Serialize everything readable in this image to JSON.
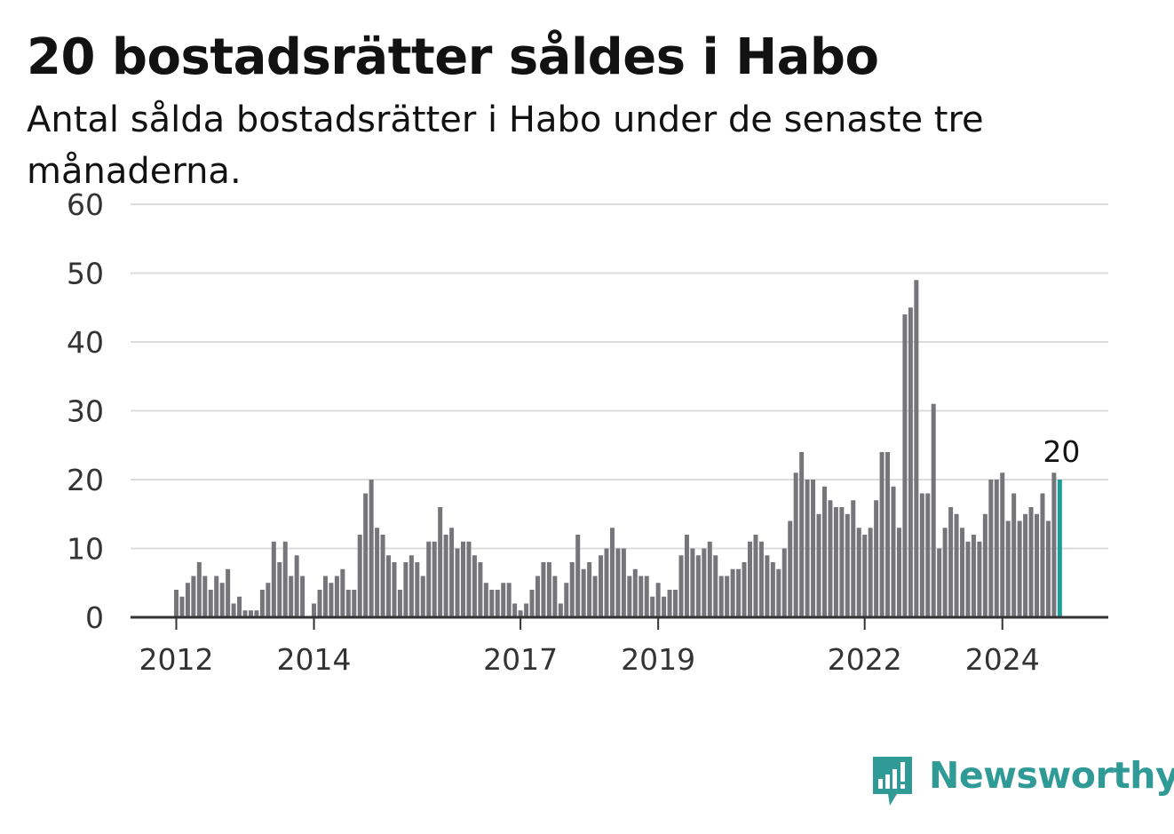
{
  "header": {
    "title": "20 bostadsrätter såldes i Habo",
    "subtitle": "Antal sålda bostadsrätter i Habo under de senaste tre månaderna."
  },
  "chart_data": {
    "type": "bar",
    "title": "20 bostadsrätter såldes i Habo",
    "subtitle": "Antal sålda bostadsrätter i Habo under de senaste tre månaderna.",
    "xlabel": "",
    "ylabel": "",
    "ylim": [
      0,
      60
    ],
    "yticks": [
      0,
      10,
      20,
      30,
      40,
      50,
      60
    ],
    "xticks": [
      {
        "label": "2012",
        "index": 0
      },
      {
        "label": "2014",
        "index": 24
      },
      {
        "label": "2017",
        "index": 60
      },
      {
        "label": "2019",
        "index": 84
      },
      {
        "label": "2022",
        "index": 120
      },
      {
        "label": "2024",
        "index": 144
      }
    ],
    "grid": true,
    "bar_color": "#76757a",
    "highlight_color": "#1b9e98",
    "highlight_index": 154,
    "highlight_label": "20",
    "values": [
      4,
      3,
      5,
      6,
      8,
      6,
      4,
      6,
      5,
      7,
      2,
      3,
      1,
      1,
      1,
      4,
      5,
      11,
      8,
      11,
      6,
      9,
      6,
      0,
      2,
      4,
      6,
      5,
      6,
      7,
      4,
      4,
      12,
      18,
      20,
      13,
      12,
      9,
      8,
      4,
      8,
      9,
      8,
      6,
      11,
      11,
      16,
      12,
      13,
      10,
      11,
      11,
      9,
      8,
      5,
      4,
      4,
      5,
      5,
      2,
      1,
      2,
      4,
      6,
      8,
      8,
      6,
      2,
      5,
      8,
      12,
      7,
      8,
      6,
      9,
      10,
      13,
      10,
      10,
      6,
      7,
      6,
      6,
      3,
      5,
      3,
      4,
      4,
      9,
      12,
      10,
      9,
      10,
      11,
      9,
      6,
      6,
      7,
      7,
      8,
      11,
      12,
      11,
      9,
      8,
      7,
      10,
      14,
      21,
      24,
      20,
      20,
      15,
      19,
      17,
      16,
      16,
      15,
      17,
      13,
      12,
      13,
      17,
      24,
      24,
      19,
      13,
      44,
      45,
      49,
      18,
      18,
      31,
      10,
      13,
      16,
      15,
      13,
      11,
      12,
      11,
      15,
      20,
      20,
      21,
      14,
      18,
      14,
      15,
      16,
      15,
      18,
      14,
      21,
      20
    ]
  },
  "branding": {
    "name": "Newsworthy",
    "color": "#2f9a96",
    "icon": "bar-chart-speech-bubble-icon"
  }
}
